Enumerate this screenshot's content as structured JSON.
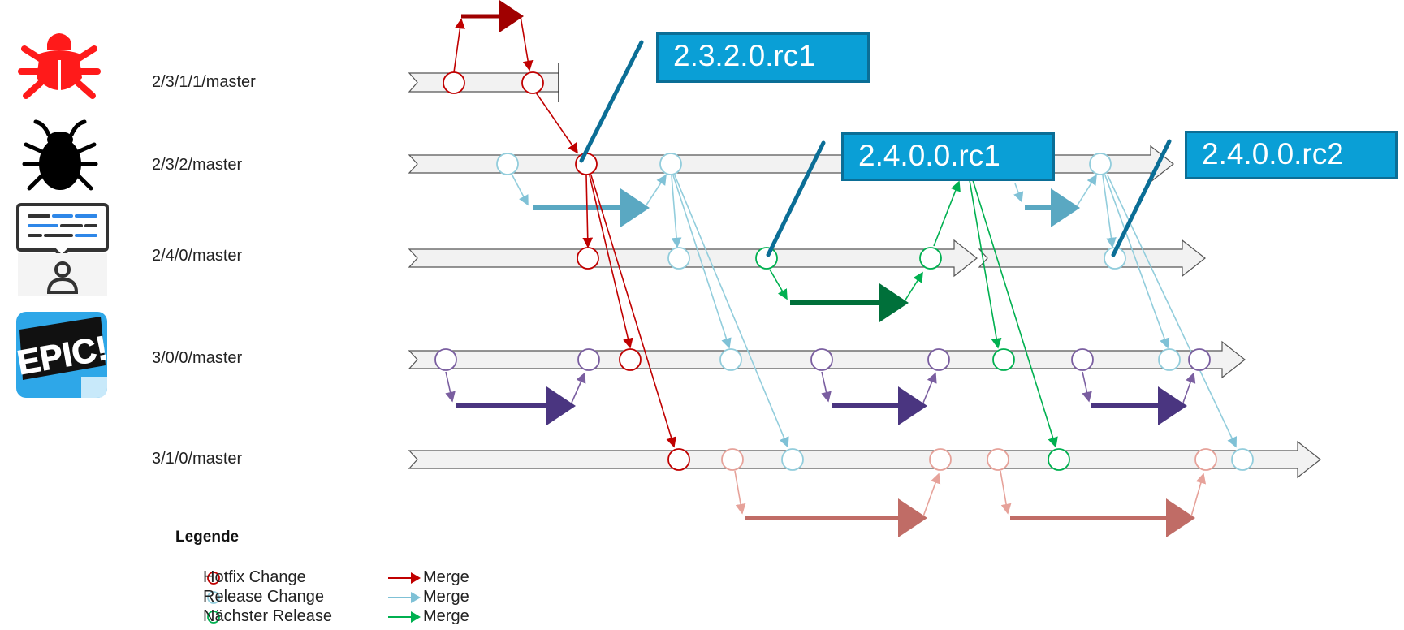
{
  "branches": [
    {
      "id": "b1",
      "label": "2/3/1/1/master"
    },
    {
      "id": "b2",
      "label": "2/3/2/master"
    },
    {
      "id": "b3",
      "label": "2/4/0/master"
    },
    {
      "id": "b4",
      "label": "3/0/0/master"
    },
    {
      "id": "b5",
      "label": "3/1/0/master"
    }
  ],
  "tags": [
    {
      "id": "t1",
      "label": "2.3.2.0.rc1"
    },
    {
      "id": "t2",
      "label": "2.4.0.0.rc1"
    },
    {
      "id": "t3",
      "label": "2.4.0.0.rc2"
    }
  ],
  "icons": [
    {
      "id": "hotfix-bug",
      "name": "red-bug-icon",
      "color": "#ff0000"
    },
    {
      "id": "bug",
      "name": "black-bug-icon",
      "color": "#000000"
    },
    {
      "id": "feedback",
      "name": "user-feedback-icon",
      "color": "#2e87e8"
    },
    {
      "id": "epic",
      "name": "epic-icon",
      "text": "EPIC!",
      "color": "#2ea7e8"
    }
  ],
  "colors": {
    "hotfix": "#c00000",
    "release": "#92cddc",
    "next_release": "#00b050",
    "feature": "#7a5ea0",
    "feature_light": "#e6a29a",
    "tag_fill": "#0a9fd6",
    "tag_border": "#0b6e96",
    "tag_pointer": "#0b6e96"
  },
  "legend": {
    "title": "Legende",
    "items": [
      {
        "label": "Hotfix Change",
        "merge_label": "Merge",
        "color": "#c00000",
        "arrow_color": "#c00000"
      },
      {
        "label": "Release Change",
        "merge_label": "Merge",
        "color": "#92cddc",
        "arrow_color": "#7fc1d6"
      },
      {
        "label": "Nächster Release",
        "merge_label": "Merge",
        "color": "#00b050",
        "arrow_color": "#00b050"
      }
    ]
  }
}
